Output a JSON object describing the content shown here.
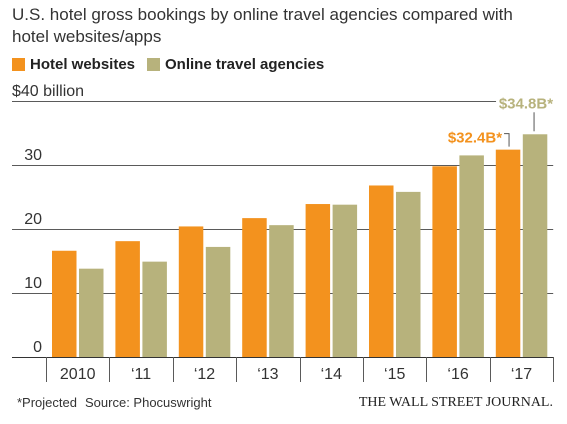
{
  "chart_data": {
    "type": "bar",
    "barmode": "grouped",
    "title": "U.S. hotel gross bookings by online travel agencies compared with hotel websites/apps",
    "categories": [
      "2010",
      "‘11",
      "‘12",
      "‘13",
      "‘14",
      "‘15",
      "‘16",
      "‘17"
    ],
    "series": [
      {
        "name": "Hotel websites",
        "color": "#F3921E",
        "values": [
          16.6,
          18.1,
          20.4,
          21.7,
          23.9,
          26.8,
          29.8,
          32.4
        ],
        "value_labels": [
          null,
          null,
          null,
          null,
          null,
          null,
          null,
          "$32.4B*"
        ]
      },
      {
        "name": "Online travel agencies",
        "color": "#B7B27C",
        "values": [
          13.8,
          14.9,
          17.2,
          20.6,
          23.8,
          25.8,
          31.5,
          34.8
        ],
        "value_labels": [
          null,
          null,
          null,
          null,
          null,
          null,
          null,
          "$34.8B*"
        ]
      }
    ],
    "ylim": [
      0,
      40
    ],
    "yticks": [
      0,
      10,
      20,
      30,
      40
    ],
    "ytick_labels": [
      "0",
      "10",
      "20",
      "30",
      "$40 billion"
    ],
    "grid": true,
    "legend_position": "top-left"
  },
  "footer": {
    "note": "*Projected",
    "source": "Source: Phocuswright",
    "publisher": "THE WALL STREET JOURNAL."
  }
}
